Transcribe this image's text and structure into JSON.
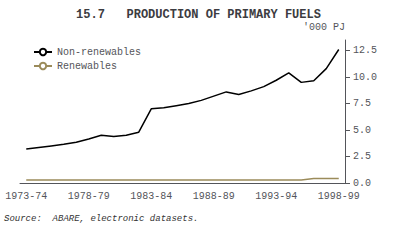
{
  "chart_data": {
    "type": "line",
    "title": "15.7   PRODUCTION OF PRIMARY FUELS",
    "ylabel": "'000 PJ",
    "annotations": [
      "Source:  ABARE, electronic datasets."
    ],
    "categories": [
      "1973-74",
      null,
      null,
      null,
      null,
      "1978-79",
      null,
      null,
      null,
      null,
      "1983-84",
      null,
      null,
      null,
      null,
      "1988-89",
      null,
      null,
      null,
      null,
      "1993-94",
      null,
      null,
      null,
      null,
      "1998-99"
    ],
    "series": [
      {
        "name": "Non-renewables",
        "color": "#000000",
        "values": [
          3.2,
          3.35,
          3.5,
          3.65,
          3.85,
          4.15,
          4.5,
          4.4,
          4.5,
          4.8,
          7.0,
          7.1,
          7.3,
          7.5,
          7.8,
          8.2,
          8.6,
          8.35,
          8.7,
          9.1,
          9.7,
          10.4,
          9.5,
          9.65,
          10.8,
          12.6
        ]
      },
      {
        "name": "Renewables",
        "color": "#9B8B5A",
        "values": [
          0.28,
          0.28,
          0.28,
          0.28,
          0.28,
          0.28,
          0.28,
          0.28,
          0.28,
          0.28,
          0.28,
          0.28,
          0.28,
          0.28,
          0.28,
          0.28,
          0.28,
          0.28,
          0.28,
          0.28,
          0.28,
          0.28,
          0.28,
          0.42,
          0.42,
          0.42
        ]
      }
    ],
    "ylim": [
      0.0,
      13.5
    ],
    "yticks": [
      {
        "value": 0.0,
        "label": "0.0"
      },
      2.5,
      {
        "value": 5.0,
        "label": "5.0"
      },
      7.5,
      {
        "value": 10.0,
        "label": "10.0"
      },
      12.5
    ],
    "grid": false,
    "legend": "upper left"
  }
}
